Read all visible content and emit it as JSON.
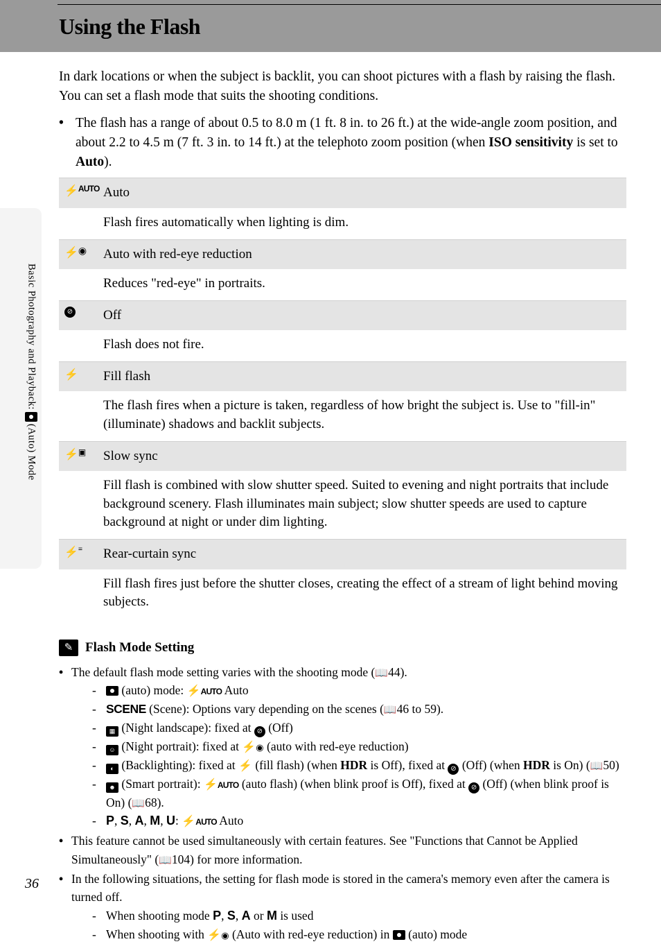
{
  "page_title": "Using the Flash",
  "intro": "In dark locations or when the subject is backlit, you can shoot pictures with a flash by raising the flash. You can set a flash mode that suits the shooting conditions.",
  "range_bullet_pre": "The flash has a range of about 0.5 to 8.0 m (1 ft. 8 in. to 26 ft.) at the wide-angle zoom position, and about 2.2 to 4.5 m (7 ft. 3 in. to 14 ft.) at the telephoto zoom position (when ",
  "range_bullet_iso": "ISO sensitivity",
  "range_bullet_mid": " is set to ",
  "range_bullet_auto": "Auto",
  "range_bullet_post": ").",
  "modes": [
    {
      "name": "Auto",
      "desc": "Flash fires automatically when lighting is dim."
    },
    {
      "name": "Auto with red-eye reduction",
      "desc": "Reduces \"red-eye\" in portraits."
    },
    {
      "name": "Off",
      "desc": "Flash does not fire."
    },
    {
      "name": "Fill flash",
      "desc": "The flash fires when a picture is taken, regardless of how bright the subject is. Use to \"fill-in\" (illuminate) shadows and backlit subjects."
    },
    {
      "name": "Slow sync",
      "desc": "Fill flash is combined with slow shutter speed. Suited to evening and night portraits that include background scenery. Flash illuminates main subject; slow shutter speeds are used to capture background at night or under dim lighting."
    },
    {
      "name": "Rear-curtain sync",
      "desc": "Fill flash fires just before the shutter closes, creating the effect of a stream of light behind moving subjects."
    }
  ],
  "sidebar_text_pre": "Basic Photography and Playback: ",
  "sidebar_text_post": " (Auto) Mode",
  "section2_title": "Flash Mode Setting",
  "s2_b1_pre": "The default flash mode setting varies with the shooting mode (",
  "s2_b1_ref": "44",
  "s2_b1_post": ").",
  "s2_sub": {
    "a_auto": " (auto) mode: ",
    "a_auto2": " Auto",
    "b_scene": " (Scene): Options vary depending on the scenes (",
    "b_ref": "46 to 59",
    "b_post": ").",
    "c_nightland": " (Night landscape): fixed at ",
    "c_off": " (Off)",
    "d_nightport": " (Night portrait): fixed at ",
    "d_red": " (auto with red-eye reduction)",
    "e_back": " (Backlighting): fixed at ",
    "e_fill": " (fill flash) (when ",
    "e_hdr": "HDR",
    "e_off1": " is Off), fixed at ",
    "e_off2": " (Off) (when ",
    "e_on": " is On) (",
    "e_ref": "50",
    "e_post": ")",
    "f_smart": " (Smart portrait): ",
    "f_autoflash": " (auto flash) (when blink proof is Off), fixed at ",
    "f_off": " (Off) (when blink proof is On) (",
    "f_ref": "68",
    "f_post": ").",
    "g_letters": ", ",
    "g_auto": " Auto"
  },
  "s2_b2_pre": "This feature cannot be used simultaneously with certain features. See \"Functions that Cannot be Applied Simultaneously\" (",
  "s2_b2_ref": "104",
  "s2_b2_post": ") for more information.",
  "s2_b3": "In the following situations, the setting for flash mode is stored in the camera's memory even after the camera is turned off.",
  "s2_b3_sub1_pre": "When shooting mode ",
  "s2_b3_sub1_post": " is used",
  "s2_b3_sub2_pre": "When shooting with ",
  "s2_b3_sub2_mid": " (Auto with red-eye reduction) in ",
  "s2_b3_sub2_post": " (auto) mode",
  "letters": {
    "p": "P",
    "s": "S",
    "a": "A",
    "m": "M",
    "u": "U"
  },
  "conj": {
    "comma": ", ",
    "or": " or "
  },
  "page_number": "36",
  "colors": {
    "header_bg": "#9a9a9a",
    "table_header_bg": "#e4e4e4",
    "sidebar_bg": "#f4f4f4",
    "text": "#000000"
  }
}
